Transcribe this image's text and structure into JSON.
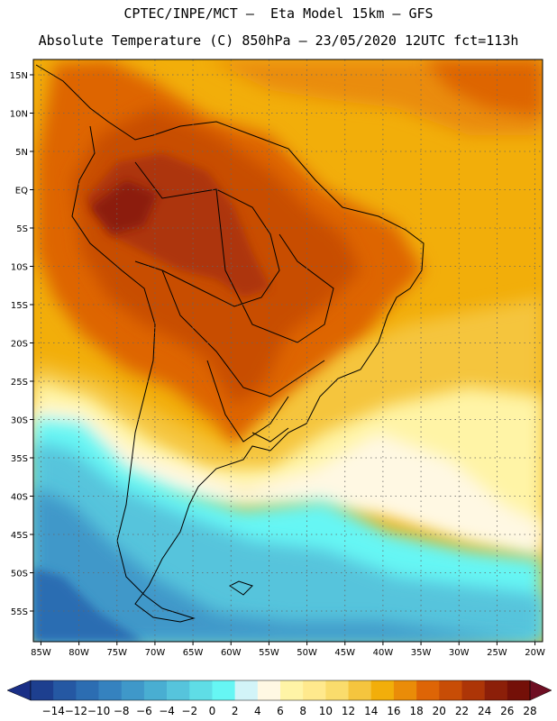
{
  "header": {
    "line1": "CPTEC/INPE/MCT –  Eta Model 15km – GFS",
    "line2": "Absolute Temperature (C) 850hPa – 23/05/2020 12UTC fct=113h"
  },
  "map": {
    "region": "South America",
    "projection": "lat-lon",
    "lon_range": [
      -86,
      -19
    ],
    "lat_range": [
      -59,
      17
    ],
    "lon_labels": [
      "85W",
      "80W",
      "75W",
      "70W",
      "65W",
      "60W",
      "55W",
      "50W",
      "45W",
      "40W",
      "35W",
      "30W",
      "25W",
      "20W"
    ],
    "lon_values": [
      -85,
      -80,
      -75,
      -70,
      -65,
      -60,
      -55,
      -50,
      -45,
      -40,
      -35,
      -30,
      -25,
      -20
    ],
    "lat_labels": [
      "15N",
      "10N",
      "5N",
      "EQ",
      "5S",
      "10S",
      "15S",
      "20S",
      "25S",
      "30S",
      "35S",
      "40S",
      "45S",
      "50S",
      "55S"
    ],
    "lat_values": [
      15,
      10,
      5,
      0,
      -5,
      -10,
      -15,
      -20,
      -25,
      -30,
      -35,
      -40,
      -45,
      -50,
      -55
    ],
    "grid": "dotted"
  },
  "colorbar": {
    "labels": [
      "-14",
      "-12",
      "-10",
      "-8",
      "-6",
      "-4",
      "-2",
      "0",
      "2",
      "4",
      "6",
      "8",
      "10",
      "12",
      "14",
      "16",
      "18",
      "20",
      "22",
      "24",
      "26",
      "28"
    ],
    "colors": [
      "#1d3f8f",
      "#2558a3",
      "#2c6db2",
      "#3582bf",
      "#3f98c9",
      "#49aed2",
      "#56c4dc",
      "#5fdde6",
      "#66f6f4",
      "#d2f4f8",
      "#fff8e3",
      "#fff4a6",
      "#ffe98d",
      "#fadc6c",
      "#f5c53e",
      "#f2ae0a",
      "#ea8c08",
      "#de6506",
      "#c84d06",
      "#ad3507",
      "#8c1f09",
      "#741008"
    ],
    "min_color": "#1a2f86",
    "max_color": "#6e0f23"
  }
}
